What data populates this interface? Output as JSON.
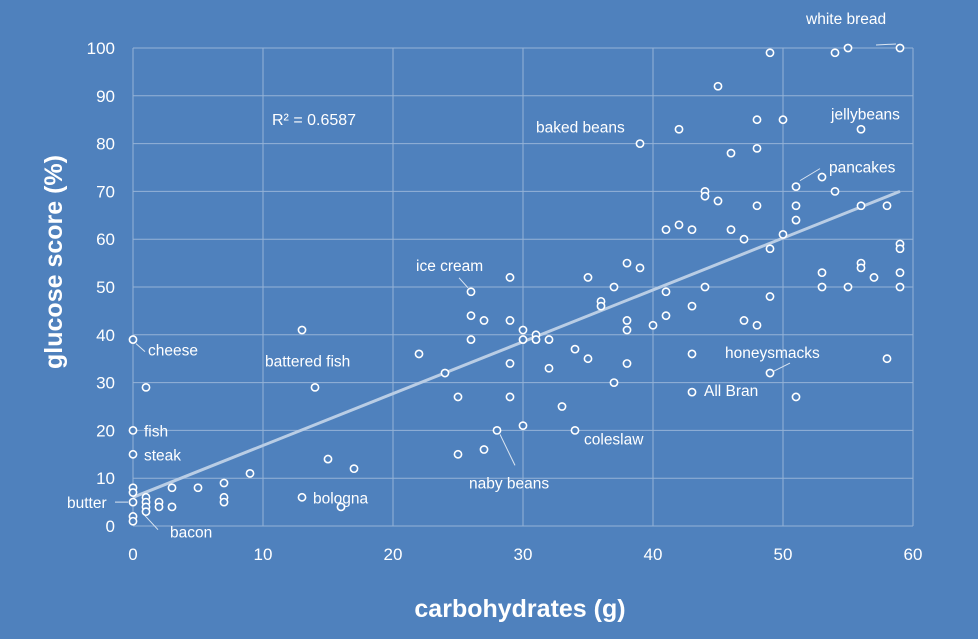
{
  "chart_data": {
    "type": "scatter",
    "title": "",
    "xlabel": "carbohydrates (g)",
    "ylabel": "glucose score (%)",
    "xlim": [
      0,
      60
    ],
    "ylim": [
      0,
      100
    ],
    "xticks": [
      0,
      10,
      20,
      30,
      40,
      50,
      60
    ],
    "yticks": [
      0,
      10,
      20,
      30,
      40,
      50,
      60,
      70,
      80,
      90,
      100
    ],
    "grid": true,
    "r_squared_label": "R² = 0.6587",
    "trendline": {
      "x": [
        0,
        59
      ],
      "y": [
        6,
        70
      ]
    },
    "points": [
      {
        "x": 0,
        "y": 39
      },
      {
        "x": 1,
        "y": 29
      },
      {
        "x": 0,
        "y": 20
      },
      {
        "x": 0,
        "y": 15
      },
      {
        "x": 0,
        "y": 8
      },
      {
        "x": 0,
        "y": 7
      },
      {
        "x": 0,
        "y": 5
      },
      {
        "x": 0,
        "y": 2
      },
      {
        "x": 0,
        "y": 1
      },
      {
        "x": 1,
        "y": 6
      },
      {
        "x": 1,
        "y": 5
      },
      {
        "x": 1,
        "y": 4
      },
      {
        "x": 1,
        "y": 3
      },
      {
        "x": 2,
        "y": 5
      },
      {
        "x": 2,
        "y": 4
      },
      {
        "x": 3,
        "y": 8
      },
      {
        "x": 3,
        "y": 4
      },
      {
        "x": 5,
        "y": 8
      },
      {
        "x": 7,
        "y": 9
      },
      {
        "x": 7,
        "y": 6
      },
      {
        "x": 7,
        "y": 5
      },
      {
        "x": 9,
        "y": 11
      },
      {
        "x": 13,
        "y": 41
      },
      {
        "x": 14,
        "y": 29
      },
      {
        "x": 13,
        "y": 6
      },
      {
        "x": 15,
        "y": 14
      },
      {
        "x": 16,
        "y": 4
      },
      {
        "x": 17,
        "y": 12
      },
      {
        "x": 22,
        "y": 36
      },
      {
        "x": 24,
        "y": 32
      },
      {
        "x": 25,
        "y": 27
      },
      {
        "x": 25,
        "y": 15
      },
      {
        "x": 26,
        "y": 49
      },
      {
        "x": 26,
        "y": 44
      },
      {
        "x": 26,
        "y": 39
      },
      {
        "x": 27,
        "y": 43
      },
      {
        "x": 27,
        "y": 16
      },
      {
        "x": 28,
        "y": 20
      },
      {
        "x": 29,
        "y": 52
      },
      {
        "x": 29,
        "y": 43
      },
      {
        "x": 29,
        "y": 34
      },
      {
        "x": 29,
        "y": 27
      },
      {
        "x": 30,
        "y": 41
      },
      {
        "x": 30,
        "y": 39
      },
      {
        "x": 30,
        "y": 21
      },
      {
        "x": 31,
        "y": 40
      },
      {
        "x": 31,
        "y": 39
      },
      {
        "x": 32,
        "y": 39
      },
      {
        "x": 32,
        "y": 33
      },
      {
        "x": 33,
        "y": 25
      },
      {
        "x": 34,
        "y": 37
      },
      {
        "x": 34,
        "y": 20
      },
      {
        "x": 35,
        "y": 52
      },
      {
        "x": 35,
        "y": 35
      },
      {
        "x": 36,
        "y": 47
      },
      {
        "x": 36,
        "y": 46
      },
      {
        "x": 37,
        "y": 50
      },
      {
        "x": 37,
        "y": 30
      },
      {
        "x": 38,
        "y": 55
      },
      {
        "x": 38,
        "y": 43
      },
      {
        "x": 38,
        "y": 41
      },
      {
        "x": 38,
        "y": 34
      },
      {
        "x": 39,
        "y": 80
      },
      {
        "x": 39,
        "y": 54
      },
      {
        "x": 40,
        "y": 42
      },
      {
        "x": 41,
        "y": 62
      },
      {
        "x": 41,
        "y": 49
      },
      {
        "x": 41,
        "y": 44
      },
      {
        "x": 42,
        "y": 83
      },
      {
        "x": 42,
        "y": 63
      },
      {
        "x": 43,
        "y": 62
      },
      {
        "x": 43,
        "y": 46
      },
      {
        "x": 43,
        "y": 36
      },
      {
        "x": 43,
        "y": 28
      },
      {
        "x": 44,
        "y": 70
      },
      {
        "x": 44,
        "y": 69
      },
      {
        "x": 44,
        "y": 50
      },
      {
        "x": 45,
        "y": 92
      },
      {
        "x": 45,
        "y": 68
      },
      {
        "x": 46,
        "y": 78
      },
      {
        "x": 46,
        "y": 62
      },
      {
        "x": 47,
        "y": 60
      },
      {
        "x": 47,
        "y": 43
      },
      {
        "x": 48,
        "y": 85
      },
      {
        "x": 48,
        "y": 79
      },
      {
        "x": 48,
        "y": 67
      },
      {
        "x": 48,
        "y": 42
      },
      {
        "x": 49,
        "y": 99
      },
      {
        "x": 49,
        "y": 58
      },
      {
        "x": 49,
        "y": 48
      },
      {
        "x": 49,
        "y": 32
      },
      {
        "x": 50,
        "y": 85
      },
      {
        "x": 50,
        "y": 61
      },
      {
        "x": 51,
        "y": 71
      },
      {
        "x": 51,
        "y": 67
      },
      {
        "x": 51,
        "y": 64
      },
      {
        "x": 51,
        "y": 27
      },
      {
        "x": 53,
        "y": 73
      },
      {
        "x": 53,
        "y": 53
      },
      {
        "x": 53,
        "y": 50
      },
      {
        "x": 54,
        "y": 99
      },
      {
        "x": 54,
        "y": 70
      },
      {
        "x": 55,
        "y": 100
      },
      {
        "x": 55,
        "y": 50
      },
      {
        "x": 56,
        "y": 83
      },
      {
        "x": 56,
        "y": 67
      },
      {
        "x": 56,
        "y": 55
      },
      {
        "x": 56,
        "y": 54
      },
      {
        "x": 57,
        "y": 52
      },
      {
        "x": 58,
        "y": 67
      },
      {
        "x": 58,
        "y": 35
      },
      {
        "x": 59,
        "y": 100
      },
      {
        "x": 59,
        "y": 59
      },
      {
        "x": 59,
        "y": 58
      },
      {
        "x": 59,
        "y": 53
      },
      {
        "x": 59,
        "y": 50
      }
    ],
    "annotations": [
      {
        "text": "white bread",
        "x": 59,
        "y": 100
      },
      {
        "text": "jellybeans",
        "x": 50,
        "y": 85
      },
      {
        "text": "baked beans",
        "x": 39,
        "y": 80
      },
      {
        "text": "pancakes",
        "x": 51,
        "y": 71
      },
      {
        "text": "ice cream",
        "x": 26,
        "y": 49
      },
      {
        "text": "cheese",
        "x": 0,
        "y": 39
      },
      {
        "text": "battered fish",
        "x": 14,
        "y": 29
      },
      {
        "text": "honeysmacks",
        "x": 49,
        "y": 32
      },
      {
        "text": "All Bran",
        "x": 43,
        "y": 28
      },
      {
        "text": "fish",
        "x": 0,
        "y": 20
      },
      {
        "text": "coleslaw",
        "x": 34,
        "y": 20
      },
      {
        "text": "steak",
        "x": 0,
        "y": 15
      },
      {
        "text": "naby beans",
        "x": 28,
        "y": 20
      },
      {
        "text": "butter",
        "x": 0,
        "y": 5
      },
      {
        "text": "bologna",
        "x": 13,
        "y": 6
      },
      {
        "text": "bacon",
        "x": 1,
        "y": 3
      }
    ]
  }
}
